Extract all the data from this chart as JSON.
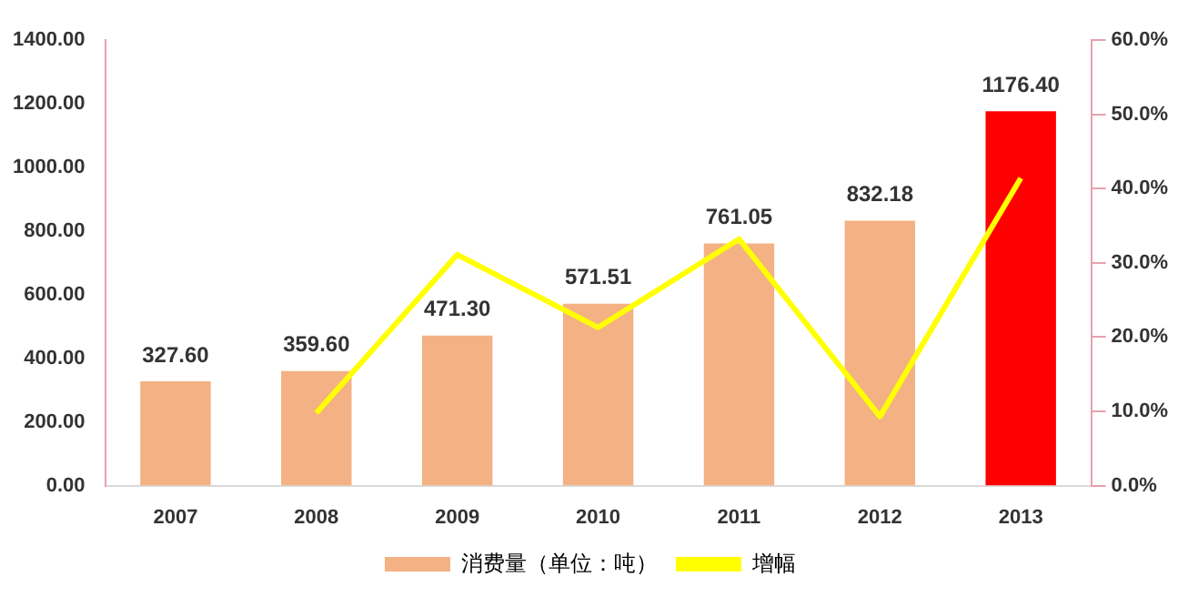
{
  "chart_data": {
    "type": "bar",
    "categories": [
      "2007",
      "2008",
      "2009",
      "2010",
      "2011",
      "2012",
      "2013"
    ],
    "series": [
      {
        "name": "消费量（单位：吨）",
        "color": "#f4b183",
        "colors": [
          "#f4b183",
          "#f4b183",
          "#f4b183",
          "#f4b183",
          "#f4b183",
          "#f4b183",
          "#ff0000"
        ],
        "values": [
          327.6,
          359.6,
          471.3,
          571.51,
          761.05,
          832.18,
          1176.4
        ],
        "value_labels": [
          "327.60",
          "359.60",
          "471.30",
          "571.51",
          "761.05",
          "832.18",
          "1176.40"
        ]
      },
      {
        "name": "增幅",
        "type": "line",
        "axis": "y2",
        "color": "#ffff00",
        "values": [
          null,
          9.8,
          31.1,
          21.3,
          33.2,
          9.3,
          41.4
        ]
      }
    ],
    "ylim": [
      0,
      1400
    ],
    "yticks": [
      {
        "value": 0,
        "label": "0.00"
      },
      {
        "value": 200,
        "label": "200.00"
      },
      {
        "value": 400,
        "label": "400.00"
      },
      {
        "value": 600,
        "label": "600.00"
      },
      {
        "value": 800,
        "label": "800.00"
      },
      {
        "value": 1000,
        "label": "1000.00"
      },
      {
        "value": 1200,
        "label": "1200.00"
      },
      {
        "value": 1400,
        "label": "1400.00"
      }
    ],
    "y2lim": [
      0,
      60
    ],
    "y2ticks": [
      {
        "value": 0,
        "label": "0.0%"
      },
      {
        "value": 10,
        "label": "10.0%"
      },
      {
        "value": 20,
        "label": "20.0%"
      },
      {
        "value": 30,
        "label": "30.0%"
      },
      {
        "value": 40,
        "label": "40.0%"
      },
      {
        "value": 50,
        "label": "50.0%"
      },
      {
        "value": 60,
        "label": "60.0%"
      }
    ],
    "grid": false,
    "legend": "bottom",
    "marker": "none",
    "line_style": "solid"
  }
}
